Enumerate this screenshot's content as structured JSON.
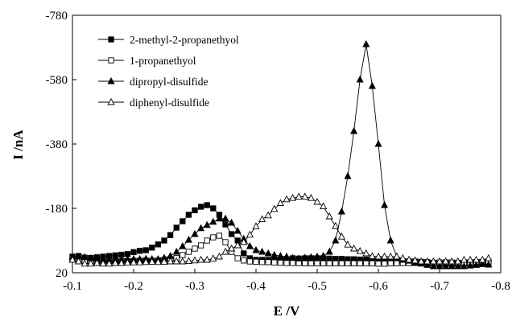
{
  "chart_data": {
    "type": "line",
    "title": "",
    "xlabel": "E /V",
    "ylabel": "I /nA",
    "xlim": [
      -0.1,
      -0.8
    ],
    "ylim": [
      20,
      -780
    ],
    "x_ticks": [
      "-0.1",
      "-0.2",
      "-0.3",
      "-0.4",
      "-0.5",
      "-0.6",
      "-0.7",
      "-0.8"
    ],
    "y_ticks": [
      "-780",
      "-580",
      "-380",
      "-180",
      "20"
    ],
    "grid": false,
    "legend_position": "top-left",
    "series": [
      {
        "name": "2-methyl-2-propanethyol",
        "marker": "filled-square",
        "x": [
          -0.1,
          -0.11,
          -0.12,
          -0.13,
          -0.14,
          -0.15,
          -0.16,
          -0.17,
          -0.18,
          -0.19,
          -0.2,
          -0.21,
          -0.22,
          -0.23,
          -0.24,
          -0.25,
          -0.26,
          -0.27,
          -0.28,
          -0.29,
          -0.3,
          -0.31,
          -0.32,
          -0.33,
          -0.34,
          -0.35,
          -0.36,
          -0.37,
          -0.38,
          -0.39,
          -0.4,
          -0.41,
          -0.42,
          -0.43,
          -0.44,
          -0.45,
          -0.46,
          -0.47,
          -0.48,
          -0.49,
          -0.5,
          -0.51,
          -0.52,
          -0.53,
          -0.54,
          -0.55,
          -0.56,
          -0.57,
          -0.58,
          -0.59,
          -0.6,
          -0.61,
          -0.62,
          -0.63,
          -0.64,
          -0.65,
          -0.66,
          -0.67,
          -0.68,
          -0.69,
          -0.7,
          -0.71,
          -0.72,
          -0.73,
          -0.74,
          -0.75,
          -0.76,
          -0.77,
          -0.78
        ],
        "y": [
          -30,
          -32,
          -27,
          -26,
          -28,
          -30,
          -32,
          -34,
          -36,
          -38,
          -44,
          -48,
          -50,
          -58,
          -68,
          -80,
          -97,
          -120,
          -140,
          -160,
          -174,
          -185,
          -190,
          -180,
          -160,
          -130,
          -100,
          -80,
          -40,
          -25,
          -20,
          -20,
          -20,
          -20,
          -21,
          -22,
          -25,
          -24,
          -25,
          -25,
          -25,
          -25,
          -24,
          -23,
          -23,
          -22,
          -22,
          -21,
          -21,
          -21,
          -20,
          -18,
          -17,
          -17,
          -16,
          -15,
          -15,
          -14,
          -13,
          -11,
          -10,
          -10,
          -10,
          -9,
          -9,
          -8,
          -8,
          -7,
          -7
        ]
      },
      {
        "name": "1-propanethyol",
        "marker": "open-square",
        "x": [
          -0.1,
          -0.11,
          -0.12,
          -0.13,
          -0.14,
          -0.15,
          -0.16,
          -0.17,
          -0.18,
          -0.19,
          -0.2,
          -0.21,
          -0.22,
          -0.23,
          -0.24,
          -0.25,
          -0.26,
          -0.27,
          -0.28,
          -0.29,
          -0.3,
          -0.31,
          -0.32,
          -0.33,
          -0.34,
          -0.35,
          -0.36,
          -0.37,
          -0.38,
          -0.39,
          -0.4,
          -0.41,
          -0.42,
          -0.43,
          -0.44,
          -0.45,
          -0.46,
          -0.47,
          -0.48,
          -0.49,
          -0.5,
          -0.51,
          -0.52,
          -0.53,
          -0.54,
          -0.55,
          -0.56,
          -0.57,
          -0.58,
          -0.59,
          -0.6,
          -0.61,
          -0.62,
          -0.63,
          -0.64,
          -0.65,
          -0.66,
          -0.67,
          -0.68,
          -0.69,
          -0.7,
          -0.71,
          -0.72,
          -0.73,
          -0.74,
          -0.75,
          -0.76,
          -0.77,
          -0.78
        ],
        "y": [
          -25,
          -20,
          -17,
          -14,
          -15,
          -15,
          -16,
          -16,
          -16,
          -16,
          -17,
          -17,
          -18,
          -17,
          -18,
          -20,
          -22,
          -26,
          -35,
          -45,
          -55,
          -65,
          -80,
          -90,
          -95,
          -75,
          -45,
          -25,
          -18,
          -15,
          -14,
          -13,
          -13,
          -12,
          -11,
          -10,
          -10,
          -10,
          -9,
          -9,
          -9,
          -9,
          -9,
          -9,
          -9,
          -9,
          -9,
          -9,
          -9,
          -9,
          -8,
          -8,
          -9,
          -9,
          -10,
          -10,
          -10,
          -11,
          -11,
          -11,
          -12,
          -12,
          -12,
          -11,
          -11,
          -12,
          -13,
          -14,
          -15
        ]
      },
      {
        "name": "dipropyl-disulfide",
        "marker": "filled-triangle",
        "x": [
          -0.1,
          -0.11,
          -0.12,
          -0.13,
          -0.14,
          -0.15,
          -0.16,
          -0.17,
          -0.18,
          -0.19,
          -0.2,
          -0.21,
          -0.22,
          -0.23,
          -0.24,
          -0.25,
          -0.26,
          -0.27,
          -0.28,
          -0.29,
          -0.3,
          -0.31,
          -0.32,
          -0.33,
          -0.34,
          -0.35,
          -0.36,
          -0.37,
          -0.38,
          -0.39,
          -0.4,
          -0.41,
          -0.42,
          -0.43,
          -0.44,
          -0.45,
          -0.46,
          -0.47,
          -0.48,
          -0.49,
          -0.5,
          -0.51,
          -0.52,
          -0.53,
          -0.54,
          -0.55,
          -0.56,
          -0.57,
          -0.58,
          -0.59,
          -0.6,
          -0.61,
          -0.62,
          -0.63,
          -0.64,
          -0.65,
          -0.66,
          -0.67,
          -0.68,
          -0.69,
          -0.7,
          -0.71,
          -0.72,
          -0.73,
          -0.74,
          -0.75,
          -0.76,
          -0.77,
          -0.78
        ],
        "y": [
          -30,
          -30,
          -28,
          -25,
          -22,
          -20,
          -20,
          -20,
          -20,
          -21,
          -22,
          -22,
          -23,
          -22,
          -22,
          -26,
          -32,
          -45,
          -62,
          -82,
          -100,
          -118,
          -128,
          -138,
          -148,
          -148,
          -135,
          -110,
          -85,
          -62,
          -50,
          -45,
          -40,
          -35,
          -32,
          -30,
          -26,
          -24,
          -26,
          -28,
          -30,
          -32,
          -45,
          -80,
          -170,
          -280,
          -420,
          -580,
          -690,
          -560,
          -380,
          -190,
          -80,
          -30,
          -20,
          -17,
          -12,
          -8,
          -4,
          0,
          0,
          0,
          0,
          0,
          0,
          -2,
          -4,
          -8,
          -5
        ]
      },
      {
        "name": "diphenyl-disulfide",
        "marker": "open-triangle",
        "x": [
          -0.1,
          -0.11,
          -0.12,
          -0.13,
          -0.14,
          -0.15,
          -0.16,
          -0.17,
          -0.18,
          -0.19,
          -0.2,
          -0.21,
          -0.22,
          -0.23,
          -0.24,
          -0.25,
          -0.26,
          -0.27,
          -0.28,
          -0.29,
          -0.3,
          -0.31,
          -0.32,
          -0.33,
          -0.34,
          -0.35,
          -0.36,
          -0.37,
          -0.38,
          -0.39,
          -0.4,
          -0.41,
          -0.42,
          -0.43,
          -0.44,
          -0.45,
          -0.46,
          -0.47,
          -0.48,
          -0.49,
          -0.5,
          -0.51,
          -0.52,
          -0.53,
          -0.54,
          -0.55,
          -0.56,
          -0.57,
          -0.58,
          -0.59,
          -0.6,
          -0.61,
          -0.62,
          -0.63,
          -0.64,
          -0.65,
          -0.66,
          -0.67,
          -0.68,
          -0.69,
          -0.7,
          -0.71,
          -0.72,
          -0.73,
          -0.74,
          -0.75,
          -0.76,
          -0.77,
          -0.78
        ],
        "y": [
          -20,
          -15,
          -8,
          -8,
          -10,
          -8,
          -8,
          -10,
          -10,
          -11,
          -12,
          -12,
          -13,
          -14,
          -13,
          -14,
          -15,
          -15,
          -15,
          -16,
          -18,
          -20,
          -20,
          -24,
          -30,
          -45,
          -55,
          -65,
          -75,
          -98,
          -124,
          -146,
          -158,
          -178,
          -196,
          -208,
          -212,
          -216,
          -216,
          -212,
          -200,
          -186,
          -155,
          -125,
          -92,
          -67,
          -55,
          -47,
          -40,
          -31,
          -30,
          -30,
          -30,
          -30,
          -25,
          -20,
          -18,
          -15,
          -15,
          -15,
          -15,
          -15,
          -15,
          -15,
          -20,
          -20,
          -20,
          -20,
          -25
        ]
      }
    ]
  }
}
